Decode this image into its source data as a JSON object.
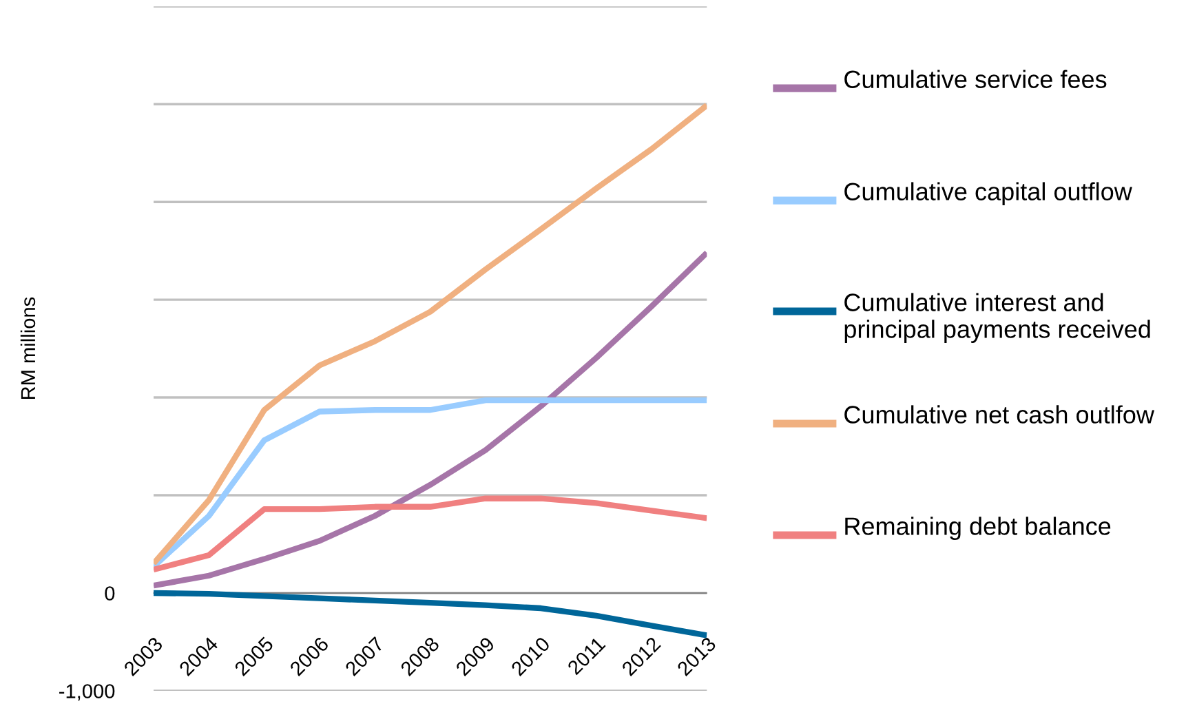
{
  "chart_data": {
    "type": "line",
    "ylabel": "RM millions",
    "categories": [
      "2003",
      "2004",
      "2005",
      "2006",
      "2007",
      "2008",
      "2009",
      "2010",
      "2011",
      "2012",
      "2013"
    ],
    "series": [
      {
        "name": "Cumulative service fees",
        "color": "#a675a8",
        "values": [
          77,
          178,
          348,
          534,
          789,
          1106,
          1462,
          1910,
          2405,
          2931,
          3480
        ]
      },
      {
        "name": "Cumulative capital outflow",
        "color": "#99ccff",
        "values": [
          270,
          789,
          1562,
          1856,
          1872,
          1872,
          1972,
          1972,
          1972,
          1972,
          1972
        ]
      },
      {
        "name": "Cumulative interest and principal payments received",
        "color": "#006699",
        "values": [
          0,
          -8,
          -31,
          -54,
          -77,
          -100,
          -124,
          -155,
          -232,
          -333,
          -433
        ]
      },
      {
        "name": "Cumulative net cash outlfow",
        "color": "#f0b080",
        "values": [
          302,
          951,
          1872,
          2328,
          2575,
          2877,
          3310,
          3720,
          4138,
          4540,
          4988
        ]
      },
      {
        "name": "Remaining debt balance",
        "color": "#f08080",
        "values": [
          240,
          387,
          858,
          858,
          882,
          882,
          967,
          967,
          920,
          843,
          766
        ]
      }
    ],
    "ylim": [
      -1000,
      6000
    ],
    "yticks": [
      {
        "value": -1000,
        "label": "-1,000"
      },
      0,
      {
        "value": 1000,
        "label": null
      },
      {
        "value": 2000,
        "label": null
      },
      {
        "value": 3000,
        "label": null
      },
      {
        "value": 4000,
        "label": null
      },
      {
        "value": 5000,
        "label": null
      },
      {
        "value": 6000,
        "label": null
      }
    ],
    "grid": "y",
    "legend": "right",
    "marker": "none",
    "line_style": "solid"
  }
}
